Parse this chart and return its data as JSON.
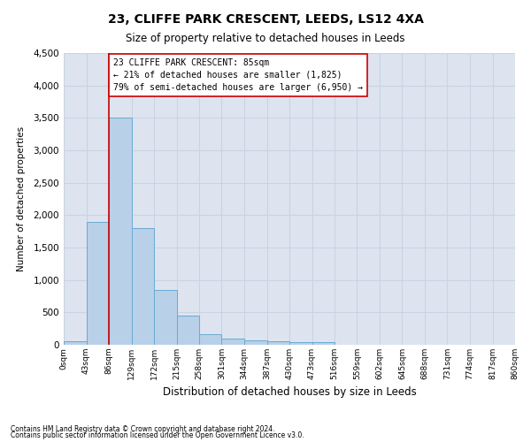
{
  "title_line1": "23, CLIFFE PARK CRESCENT, LEEDS, LS12 4XA",
  "title_line2": "Size of property relative to detached houses in Leeds",
  "xlabel": "Distribution of detached houses by size in Leeds",
  "ylabel": "Number of detached properties",
  "footnote1": "Contains HM Land Registry data © Crown copyright and database right 2024.",
  "footnote2": "Contains public sector information licensed under the Open Government Licence v3.0.",
  "bin_labels": [
    "0sqm",
    "43sqm",
    "86sqm",
    "129sqm",
    "172sqm",
    "215sqm",
    "258sqm",
    "301sqm",
    "344sqm",
    "387sqm",
    "430sqm",
    "473sqm",
    "516sqm",
    "559sqm",
    "602sqm",
    "645sqm",
    "688sqm",
    "731sqm",
    "774sqm",
    "817sqm",
    "860sqm"
  ],
  "bar_values": [
    50,
    1900,
    3500,
    1800,
    850,
    450,
    165,
    95,
    75,
    55,
    45,
    38,
    0,
    0,
    0,
    0,
    0,
    0,
    0,
    0
  ],
  "bar_color": "#b8d0e8",
  "bar_edge_color": "#6aaad4",
  "grid_color": "#c8d4e4",
  "background_color": "#dde4f0",
  "annotation_box_color": "#cc0000",
  "property_line_x": 86,
  "annotation_title": "23 CLIFFE PARK CRESCENT: 85sqm",
  "annotation_line2": "← 21% of detached houses are smaller (1,825)",
  "annotation_line3": "79% of semi-detached houses are larger (6,950) →",
  "ylim": [
    0,
    4500
  ],
  "yticks": [
    0,
    500,
    1000,
    1500,
    2000,
    2500,
    3000,
    3500,
    4000,
    4500
  ],
  "fig_width": 6.0,
  "fig_height": 5.0,
  "dpi": 100
}
